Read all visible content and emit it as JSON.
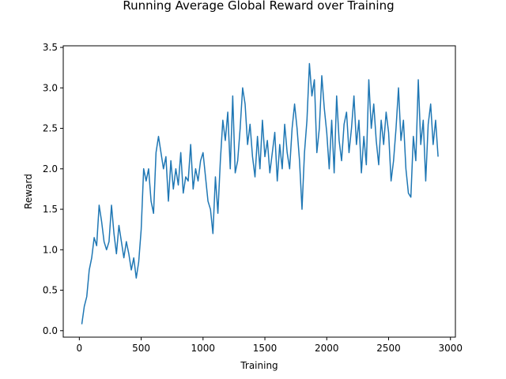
{
  "chart_data": {
    "type": "line",
    "title": "Running Average Global Reward over Training",
    "xlabel": "Training",
    "ylabel": "Reward",
    "xlim": [
      -130,
      3040
    ],
    "ylim": [
      -0.08,
      3.52
    ],
    "xticks": [
      0,
      500,
      1000,
      1500,
      2000,
      2500,
      3000
    ],
    "yticks": [
      0.0,
      0.5,
      1.0,
      1.5,
      2.0,
      2.5,
      3.0,
      3.5
    ],
    "xtick_labels": [
      "0",
      "500",
      "1000",
      "1500",
      "2000",
      "2500",
      "3000"
    ],
    "ytick_labels": [
      "0.0",
      "0.5",
      "1.0",
      "1.5",
      "2.0",
      "2.5",
      "3.0",
      "3.5"
    ],
    "grid": false,
    "series": [
      {
        "color": "#1f77b4",
        "x": [
          20,
          40,
          60,
          80,
          100,
          120,
          140,
          160,
          180,
          200,
          220,
          240,
          260,
          280,
          300,
          320,
          340,
          360,
          380,
          400,
          420,
          440,
          460,
          480,
          500,
          520,
          540,
          560,
          580,
          600,
          620,
          640,
          660,
          680,
          700,
          720,
          740,
          760,
          780,
          800,
          820,
          840,
          860,
          880,
          900,
          920,
          940,
          960,
          980,
          1000,
          1020,
          1040,
          1060,
          1080,
          1100,
          1120,
          1140,
          1160,
          1180,
          1200,
          1220,
          1240,
          1260,
          1280,
          1300,
          1320,
          1340,
          1360,
          1380,
          1400,
          1420,
          1440,
          1460,
          1480,
          1500,
          1520,
          1540,
          1560,
          1580,
          1600,
          1620,
          1640,
          1660,
          1680,
          1700,
          1720,
          1740,
          1760,
          1780,
          1800,
          1820,
          1840,
          1860,
          1880,
          1900,
          1920,
          1940,
          1960,
          1980,
          2000,
          2020,
          2040,
          2060,
          2080,
          2100,
          2120,
          2140,
          2160,
          2180,
          2200,
          2220,
          2240,
          2260,
          2280,
          2300,
          2320,
          2340,
          2360,
          2380,
          2400,
          2420,
          2440,
          2460,
          2480,
          2500,
          2520,
          2540,
          2560,
          2580,
          2600,
          2620,
          2640,
          2660,
          2680,
          2700,
          2720,
          2740,
          2760,
          2780,
          2800,
          2820,
          2840,
          2860,
          2880,
          2900
        ],
        "values": [
          0.08,
          0.3,
          0.42,
          0.75,
          0.9,
          1.15,
          1.05,
          1.55,
          1.35,
          1.1,
          1.0,
          1.1,
          1.55,
          1.2,
          0.95,
          1.3,
          1.1,
          0.9,
          1.1,
          0.95,
          0.75,
          0.9,
          0.65,
          0.85,
          1.25,
          2.0,
          1.85,
          2.0,
          1.6,
          1.45,
          2.2,
          2.4,
          2.2,
          2.0,
          2.15,
          1.6,
          2.1,
          1.75,
          2.0,
          1.8,
          2.2,
          1.7,
          1.9,
          1.85,
          2.3,
          1.75,
          2.0,
          1.85,
          2.1,
          2.2,
          1.9,
          1.6,
          1.5,
          1.2,
          1.9,
          1.45,
          2.1,
          2.6,
          2.35,
          2.7,
          2.0,
          2.9,
          1.95,
          2.1,
          2.5,
          3.0,
          2.8,
          2.3,
          2.55,
          2.15,
          1.9,
          2.4,
          2.0,
          2.6,
          2.15,
          2.35,
          1.95,
          2.2,
          2.45,
          1.85,
          2.3,
          2.0,
          2.55,
          2.2,
          2.0,
          2.5,
          2.8,
          2.5,
          2.1,
          1.5,
          2.2,
          2.6,
          3.3,
          2.9,
          3.1,
          2.2,
          2.5,
          3.15,
          2.75,
          2.45,
          2.0,
          2.6,
          1.95,
          2.9,
          2.35,
          2.1,
          2.55,
          2.7,
          2.2,
          2.5,
          2.9,
          2.3,
          2.6,
          1.95,
          2.4,
          2.05,
          3.1,
          2.5,
          2.8,
          2.35,
          2.05,
          2.6,
          2.3,
          2.7,
          2.45,
          1.85,
          2.1,
          2.5,
          3.0,
          2.35,
          2.6,
          2.0,
          1.7,
          1.65,
          2.4,
          2.1,
          3.1,
          2.3,
          2.6,
          1.85,
          2.55,
          2.8,
          2.3,
          2.6,
          2.15
        ]
      }
    ]
  }
}
